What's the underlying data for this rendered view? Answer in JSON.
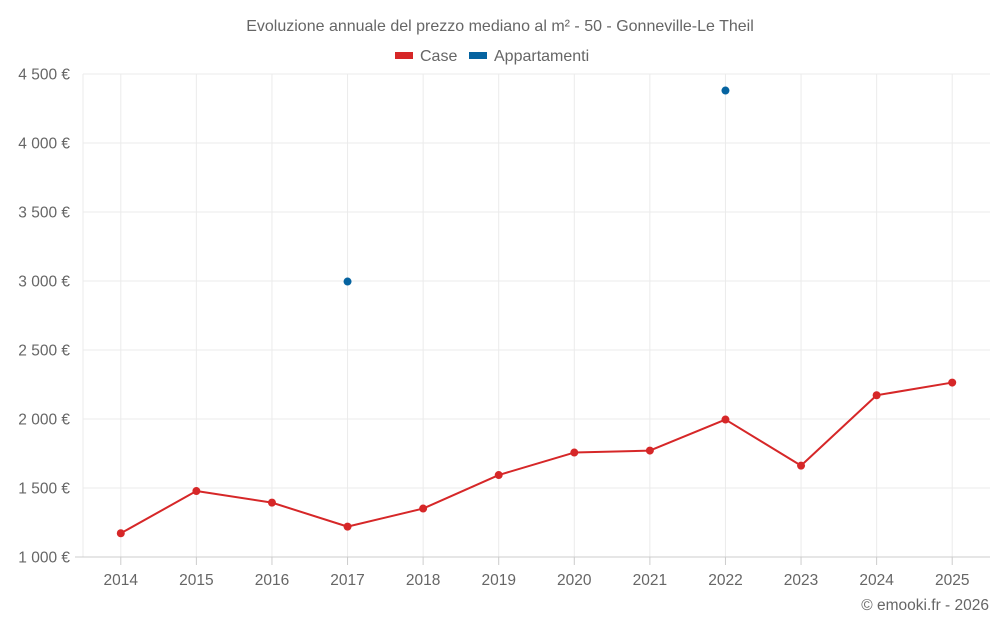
{
  "chart_data": {
    "type": "line",
    "title": "Evoluzione annuale del prezzo mediano al m² - 50 - Gonneville-Le Theil",
    "xlabel": "",
    "ylabel": "",
    "categories": [
      "2014",
      "2015",
      "2016",
      "2017",
      "2018",
      "2019",
      "2020",
      "2021",
      "2022",
      "2023",
      "2024",
      "2025"
    ],
    "ylim": [
      1000,
      4500
    ],
    "yticks": [
      1000,
      1500,
      2000,
      2500,
      3000,
      3500,
      4000,
      4500
    ],
    "ytick_labels": [
      "1 000 €",
      "1 500 €",
      "2 000 €",
      "2 500 €",
      "3 000 €",
      "3 500 €",
      "4 000 €",
      "4 500 €"
    ],
    "grid": true,
    "legend_position": "top-center",
    "series": [
      {
        "name": "Case",
        "color": "#d62728",
        "values": [
          1172,
          1478,
          1394,
          1220,
          1351,
          1594,
          1757,
          1771,
          1996,
          1662,
          2172,
          2264
        ]
      },
      {
        "name": "Appartamenti",
        "color": "#0563a0",
        "values": [
          null,
          null,
          null,
          2996,
          null,
          null,
          null,
          null,
          4380,
          null,
          null,
          null
        ]
      }
    ],
    "credit": "© emooki.fr - 2026"
  }
}
